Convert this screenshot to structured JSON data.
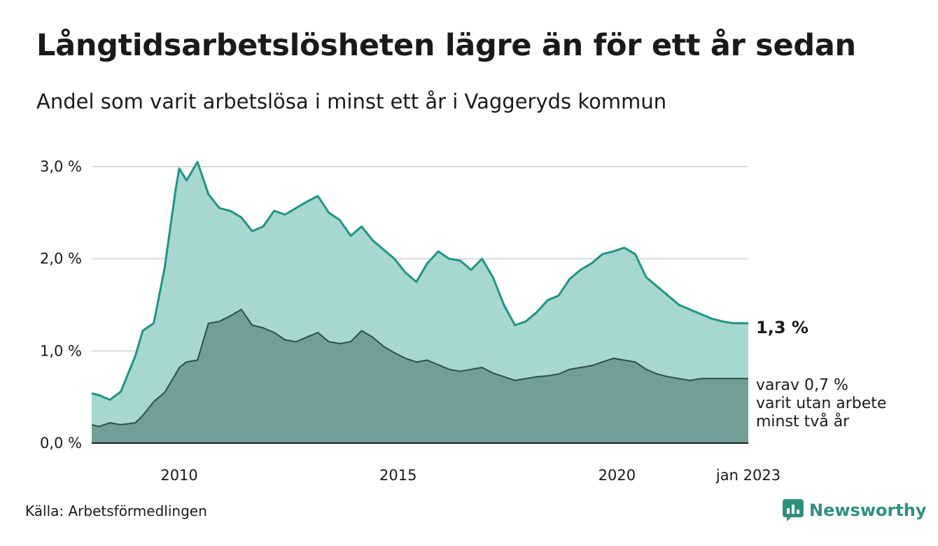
{
  "header": {
    "title": "Långtidsarbetslösheten lägre än för ett år sedan",
    "subtitle": "Andel som varit arbetslösa i minst ett år i Vaggeryds kommun"
  },
  "footer": {
    "source": "Källa: Arbetsförmedlingen",
    "brand": "Newsworthy"
  },
  "colors": {
    "total_line": "#1f9484",
    "total_fill": "#a6d7d1",
    "long_line": "#2d4f49",
    "long_fill": "#6f9f97",
    "grid": "#d9d9d9",
    "brand": "#2f8f7f"
  },
  "chart_data": {
    "type": "area",
    "title": "Långtidsarbetslösheten lägre än för ett år sedan",
    "subtitle": "Andel som varit arbetslösa i minst ett år i Vaggeryds kommun",
    "xlabel": "",
    "ylabel": "",
    "xlim": [
      "2008-01",
      "2023-01"
    ],
    "ylim": [
      0,
      3.0
    ],
    "grid": true,
    "x_ticks": [
      {
        "date": "2010-01",
        "label": "2010"
      },
      {
        "date": "2015-01",
        "label": "2015"
      },
      {
        "date": "2020-01",
        "label": "2020"
      },
      {
        "date": "2023-01",
        "label": "jan 2023"
      }
    ],
    "y_ticks": [
      {
        "value": 0,
        "label": "0,0 %"
      },
      {
        "value": 1.0,
        "label": "1,0 %"
      },
      {
        "value": 2.0,
        "label": "2,0 %"
      },
      {
        "value": 3.0,
        "label": "3,0 %"
      }
    ],
    "x": [
      "2008-01",
      "2008-03",
      "2008-06",
      "2008-09",
      "2009-01",
      "2009-03",
      "2009-06",
      "2009-09",
      "2009-12",
      "2010-01",
      "2010-03",
      "2010-06",
      "2010-09",
      "2010-12",
      "2011-03",
      "2011-06",
      "2011-09",
      "2011-12",
      "2012-03",
      "2012-06",
      "2012-09",
      "2012-12",
      "2013-03",
      "2013-06",
      "2013-09",
      "2013-12",
      "2014-03",
      "2014-06",
      "2014-09",
      "2014-12",
      "2015-03",
      "2015-06",
      "2015-09",
      "2015-12",
      "2016-03",
      "2016-06",
      "2016-09",
      "2016-12",
      "2017-03",
      "2017-06",
      "2017-09",
      "2017-12",
      "2018-03",
      "2018-06",
      "2018-09",
      "2018-12",
      "2019-03",
      "2019-06",
      "2019-09",
      "2019-12",
      "2020-03",
      "2020-06",
      "2020-09",
      "2020-12",
      "2021-03",
      "2021-06",
      "2021-09",
      "2021-12",
      "2022-03",
      "2022-06",
      "2022-09",
      "2022-12",
      "2023-01"
    ],
    "series": [
      {
        "name": "",
        "end_label": "1,3 %",
        "values": [
          0.54,
          0.52,
          0.47,
          0.56,
          0.95,
          1.22,
          1.3,
          1.9,
          2.75,
          2.98,
          2.85,
          3.05,
          2.7,
          2.55,
          2.52,
          2.45,
          2.3,
          2.35,
          2.52,
          2.48,
          2.55,
          2.62,
          2.68,
          2.5,
          2.42,
          2.25,
          2.35,
          2.2,
          2.1,
          2.0,
          1.85,
          1.75,
          1.95,
          2.08,
          2.0,
          1.98,
          1.88,
          2.0,
          1.8,
          1.5,
          1.28,
          1.32,
          1.42,
          1.55,
          1.6,
          1.78,
          1.88,
          1.95,
          2.05,
          2.08,
          2.12,
          2.05,
          1.8,
          1.7,
          1.6,
          1.5,
          1.45,
          1.4,
          1.35,
          1.32,
          1.3,
          1.3,
          1.3
        ]
      },
      {
        "name": "",
        "end_label": "varav 0,7 % varit utan arbete minst två år",
        "values": [
          0.2,
          0.18,
          0.22,
          0.2,
          0.22,
          0.3,
          0.45,
          0.55,
          0.75,
          0.82,
          0.88,
          0.9,
          1.3,
          1.32,
          1.38,
          1.45,
          1.28,
          1.25,
          1.2,
          1.12,
          1.1,
          1.15,
          1.2,
          1.1,
          1.08,
          1.1,
          1.22,
          1.15,
          1.05,
          0.98,
          0.92,
          0.88,
          0.9,
          0.85,
          0.8,
          0.78,
          0.8,
          0.82,
          0.76,
          0.72,
          0.68,
          0.7,
          0.72,
          0.73,
          0.75,
          0.8,
          0.82,
          0.84,
          0.88,
          0.92,
          0.9,
          0.88,
          0.8,
          0.75,
          0.72,
          0.7,
          0.68,
          0.7,
          0.7,
          0.7,
          0.7,
          0.7,
          0.7
        ]
      }
    ]
  }
}
